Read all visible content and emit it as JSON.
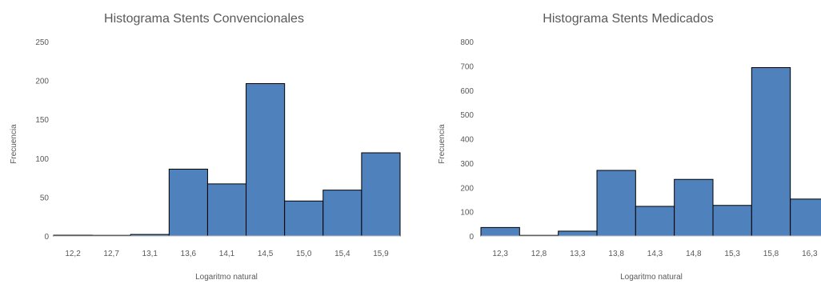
{
  "chart_data": [
    {
      "type": "bar",
      "title": "Histograma Stents Convencionales",
      "xlabel": "Logaritmo natural",
      "ylabel": "Frecuencia",
      "categories": [
        "12,2",
        "12,7",
        "13,1",
        "13,6",
        "14,1",
        "14,5",
        "15,0",
        "15,4",
        "15,9"
      ],
      "values": [
        1,
        0,
        2,
        86,
        67,
        196,
        45,
        59,
        107
      ],
      "ylim": [
        0,
        250
      ],
      "yticks": [
        0,
        50,
        100,
        150,
        200,
        250
      ],
      "grid": false,
      "colors": {
        "bar": "#4f81bd",
        "edge": "#000000"
      }
    },
    {
      "type": "bar",
      "title": "Histograma Stents Medicados",
      "xlabel": "Logaritmo natural",
      "ylabel": "Frecuencia",
      "categories": [
        "12,3",
        "12,8",
        "13,3",
        "13,8",
        "14,3",
        "14,8",
        "15,3",
        "15,8",
        "16,3"
      ],
      "values": [
        35,
        2,
        20,
        270,
        122,
        233,
        126,
        693,
        152
      ],
      "ylim": [
        0,
        800
      ],
      "yticks": [
        0,
        100,
        200,
        300,
        400,
        500,
        600,
        700,
        800
      ],
      "grid": false,
      "colors": {
        "bar": "#4f81bd",
        "edge": "#000000"
      }
    }
  ]
}
